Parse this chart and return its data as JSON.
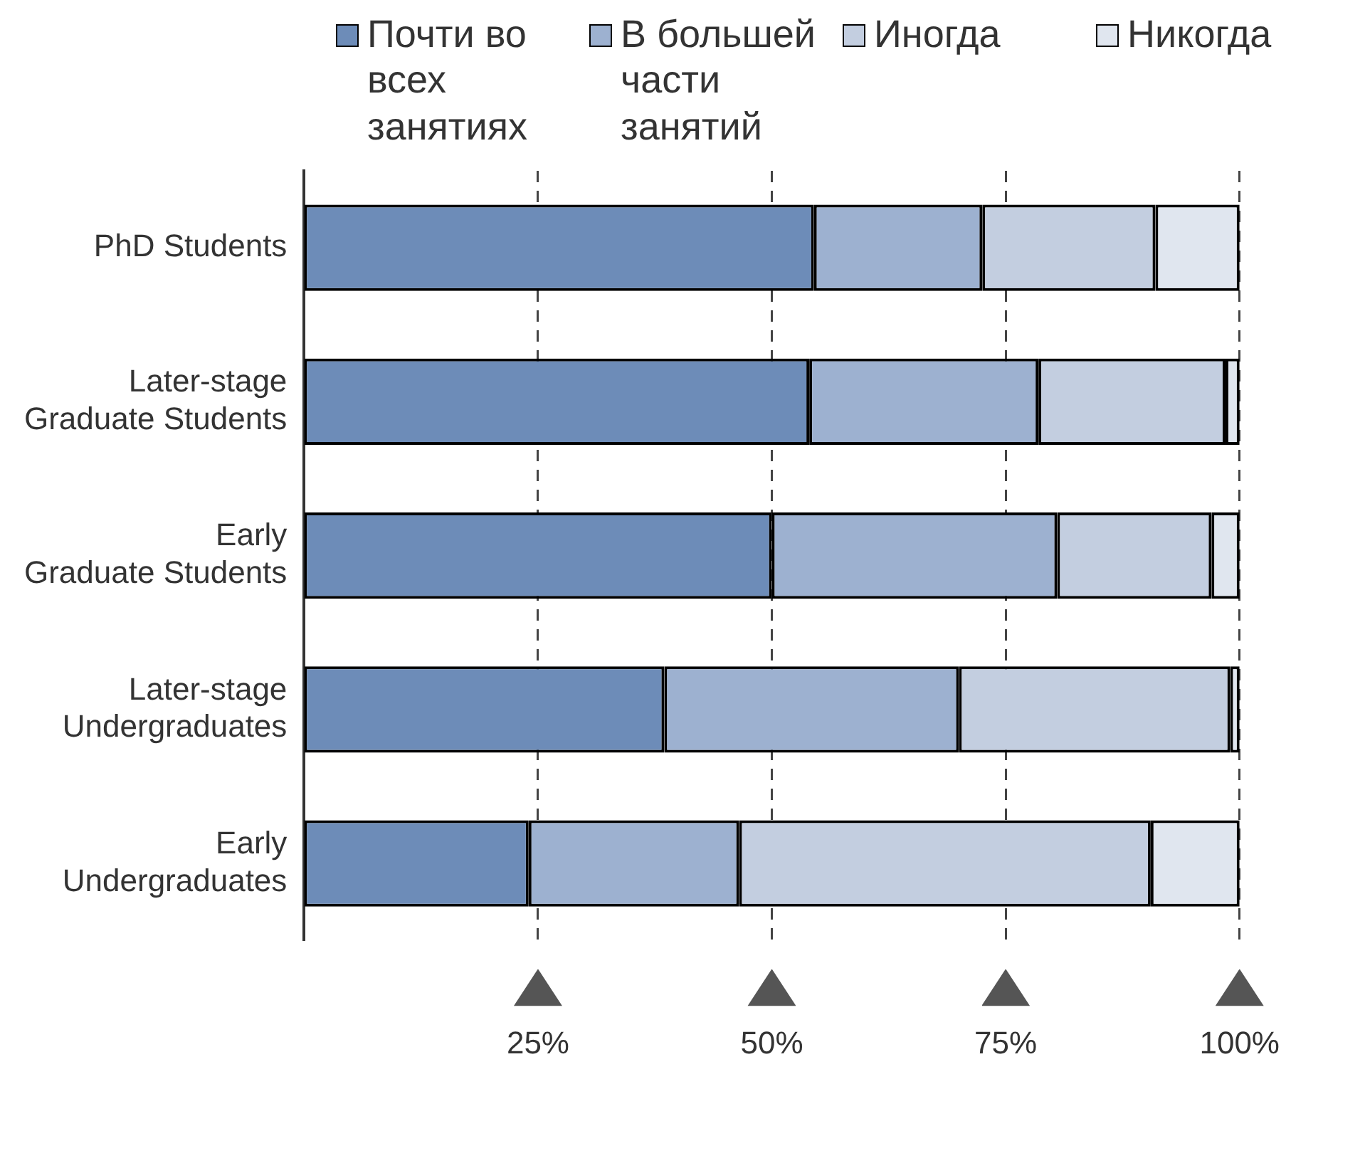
{
  "chart_data": {
    "type": "bar",
    "orientation": "horizontal",
    "stacked": true,
    "categories": [
      "PhD Students",
      "Later-stage Graduate Students",
      "Early Graduate Students",
      "Later-stage Undergraduates",
      "Early Undergraduates"
    ],
    "series": [
      {
        "name": "Почти во всех занятиях",
        "color": "#6d8cb8",
        "values": [
          54.5,
          54,
          50,
          38.5,
          24
        ]
      },
      {
        "name": "В большей части занятий",
        "color": "#9db1d0",
        "values": [
          18,
          24.5,
          30.5,
          31.5,
          22.5
        ]
      },
      {
        "name": "Иногда",
        "color": "#c3cee0",
        "values": [
          18.5,
          20,
          16.5,
          29,
          44
        ]
      },
      {
        "name": "Никогда",
        "color": "#e0e6ef",
        "values": [
          9,
          1.5,
          3,
          1,
          9.5
        ]
      }
    ],
    "xlim": [
      0,
      100
    ],
    "xticks": [
      {
        "value": 25,
        "label": "25%"
      },
      {
        "value": 50,
        "label": "50%"
      },
      {
        "value": 75,
        "label": "75%"
      },
      {
        "value": 100,
        "label": "100%"
      }
    ],
    "grid": "x",
    "legend": "top"
  }
}
